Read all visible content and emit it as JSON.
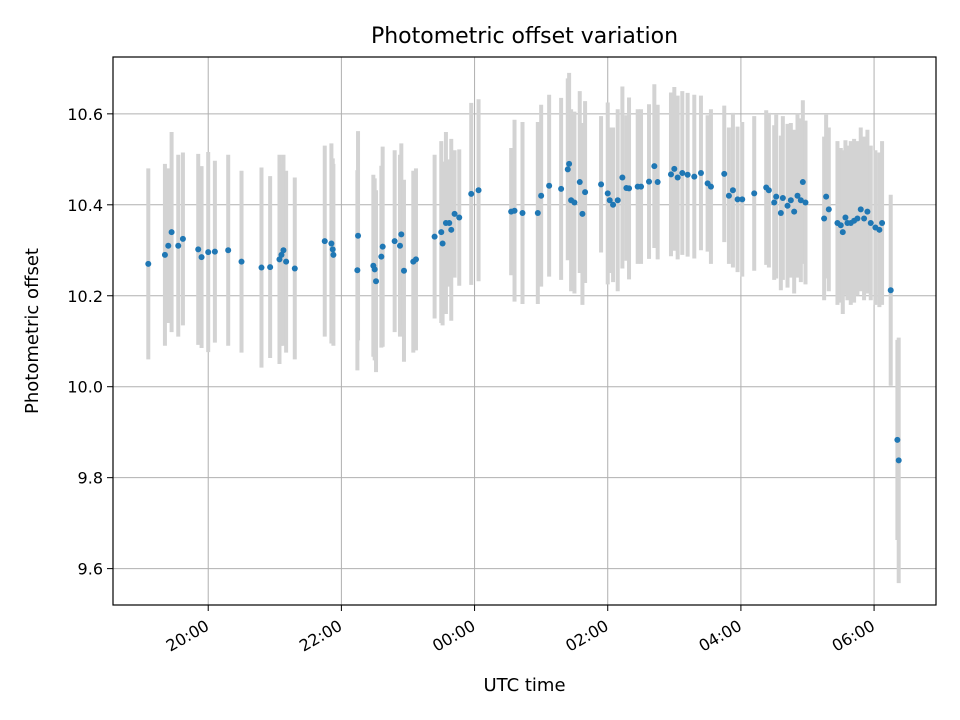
{
  "chart_data": {
    "type": "scatter",
    "title": "Photometric offset variation",
    "xlabel": "UTC time",
    "ylabel": "Photometric offset",
    "grid": true,
    "x_tick_labels": [
      "20:00",
      "22:00",
      "00:00",
      "02:00",
      "04:00",
      "06:00"
    ],
    "x_tick_hours": [
      20,
      22,
      24,
      26,
      28,
      30
    ],
    "xlim": [
      18.57,
      30.93
    ],
    "y_ticks": [
      9.6,
      9.8,
      10.0,
      10.2,
      10.4,
      10.6
    ],
    "y_tick_labels": [
      "9.6",
      "9.8",
      "10.0",
      "10.2",
      "10.4",
      "10.6"
    ],
    "ylim": [
      9.52,
      10.725
    ],
    "marker_color": "#1f77b4",
    "errorbar_color": "#d3d3d3",
    "series": [
      {
        "name": "offset",
        "x_hours": [
          19.1,
          19.35,
          19.4,
          19.45,
          19.55,
          19.62,
          19.85,
          19.9,
          20.0,
          20.1,
          20.3,
          20.5,
          20.8,
          20.93,
          21.07,
          21.1,
          21.13,
          21.17,
          21.3,
          21.75,
          21.85,
          21.87,
          21.88,
          22.24,
          22.25,
          22.48,
          22.5,
          22.52,
          22.6,
          22.62,
          22.8,
          22.88,
          22.9,
          22.94,
          23.08,
          23.12,
          23.4,
          23.5,
          23.52,
          23.57,
          23.62,
          23.65,
          23.7,
          23.77,
          23.95,
          24.06,
          24.55,
          24.6,
          24.72,
          24.95,
          25.0,
          25.12,
          25.3,
          25.4,
          25.42,
          25.45,
          25.5,
          25.58,
          25.62,
          25.66,
          25.9,
          26.0,
          26.03,
          26.08,
          26.15,
          26.22,
          26.28,
          26.32,
          26.45,
          26.5,
          26.62,
          26.7,
          26.75,
          26.95,
          27.0,
          27.05,
          27.12,
          27.2,
          27.3,
          27.4,
          27.5,
          27.55,
          27.75,
          27.82,
          27.88,
          27.95,
          28.02,
          28.2,
          28.38,
          28.42,
          28.5,
          28.53,
          28.6,
          28.63,
          28.7,
          28.75,
          28.8,
          28.85,
          28.9,
          28.93,
          28.97,
          29.25,
          29.28,
          29.32,
          29.45,
          29.5,
          29.53,
          29.57,
          29.6,
          29.65,
          29.7,
          29.75,
          29.8,
          29.85,
          29.9,
          29.95,
          30.02,
          30.08,
          30.12,
          30.25,
          30.35,
          30.37
        ],
        "values": [
          10.27,
          10.29,
          10.31,
          10.34,
          10.31,
          10.325,
          10.302,
          10.285,
          10.296,
          10.297,
          10.3,
          10.275,
          10.262,
          10.263,
          10.28,
          10.29,
          10.3,
          10.275,
          10.26,
          10.32,
          10.315,
          10.302,
          10.29,
          10.256,
          10.332,
          10.266,
          10.258,
          10.232,
          10.286,
          10.308,
          10.32,
          10.31,
          10.335,
          10.255,
          10.275,
          10.28,
          10.33,
          10.34,
          10.315,
          10.36,
          10.36,
          10.345,
          10.38,
          10.372,
          10.424,
          10.432,
          10.385,
          10.387,
          10.382,
          10.382,
          10.42,
          10.442,
          10.435,
          10.478,
          10.49,
          10.41,
          10.405,
          10.45,
          10.38,
          10.428,
          10.445,
          10.425,
          10.41,
          10.4,
          10.41,
          10.46,
          10.437,
          10.436,
          10.44,
          10.44,
          10.451,
          10.485,
          10.45,
          10.467,
          10.479,
          10.46,
          10.47,
          10.466,
          10.462,
          10.47,
          10.447,
          10.44,
          10.468,
          10.42,
          10.432,
          10.412,
          10.412,
          10.425,
          10.438,
          10.432,
          10.405,
          10.418,
          10.382,
          10.415,
          10.398,
          10.41,
          10.385,
          10.42,
          10.41,
          10.45,
          10.405,
          10.37,
          10.418,
          10.39,
          10.36,
          10.355,
          10.34,
          10.372,
          10.36,
          10.36,
          10.365,
          10.37,
          10.39,
          10.37,
          10.385,
          10.36,
          10.35,
          10.345,
          10.36,
          10.212,
          9.883,
          9.838
        ],
        "errors": [
          0.21,
          0.2,
          0.17,
          0.22,
          0.2,
          0.19,
          0.21,
          0.2,
          0.22,
          0.2,
          0.21,
          0.2,
          0.22,
          0.2,
          0.23,
          0.2,
          0.21,
          0.2,
          0.2,
          0.21,
          0.22,
          0.2,
          0.2,
          0.22,
          0.23,
          0.2,
          0.2,
          0.2,
          0.2,
          0.22,
          0.2,
          0.2,
          0.2,
          0.2,
          0.2,
          0.2,
          0.18,
          0.2,
          0.18,
          0.2,
          0.14,
          0.2,
          0.14,
          0.15,
          0.2,
          0.2,
          0.14,
          0.2,
          0.2,
          0.2,
          0.2,
          0.2,
          0.2,
          0.2,
          0.2,
          0.2,
          0.2,
          0.2,
          0.2,
          0.2,
          0.15,
          0.2,
          0.16,
          0.17,
          0.2,
          0.2,
          0.16,
          0.2,
          0.17,
          0.17,
          0.17,
          0.18,
          0.17,
          0.18,
          0.18,
          0.18,
          0.18,
          0.18,
          0.18,
          0.17,
          0.15,
          0.17,
          0.15,
          0.15,
          0.17,
          0.16,
          0.17,
          0.17,
          0.17,
          0.17,
          0.17,
          0.18,
          0.17,
          0.18,
          0.18,
          0.17,
          0.18,
          0.18,
          0.18,
          0.18,
          0.18,
          0.18,
          0.18,
          0.18,
          0.18,
          0.17,
          0.18,
          0.17,
          0.17,
          0.18,
          0.18,
          0.17,
          0.18,
          0.18,
          0.18,
          0.17,
          0.17,
          0.17,
          0.18,
          0.21,
          0.22,
          0.27
        ]
      }
    ]
  }
}
